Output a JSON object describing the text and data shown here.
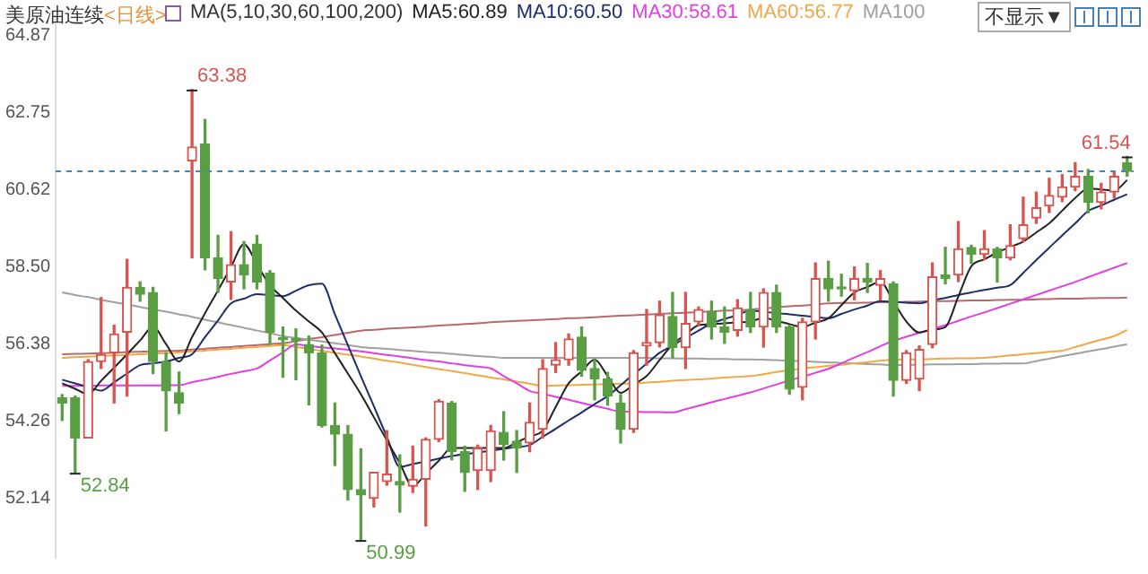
{
  "chart_data": {
    "type": "candlestick",
    "title": "美原油连续",
    "subtitle": "<日线>",
    "categories": [
      null,
      null,
      null,
      null,
      null,
      null,
      null,
      null,
      null,
      null,
      null,
      null,
      null,
      null,
      null,
      null,
      null,
      null,
      null,
      null,
      null,
      null,
      null,
      null,
      null,
      null,
      null,
      null,
      null,
      null,
      null,
      null,
      null,
      null,
      null,
      null,
      null,
      null,
      null,
      null,
      null,
      null,
      null,
      null,
      null,
      null,
      null,
      null,
      null,
      null,
      null,
      null,
      null,
      null,
      null,
      null,
      null,
      null,
      null,
      null,
      null,
      null,
      null,
      null,
      null,
      null,
      null,
      null,
      null,
      null,
      null,
      null,
      null,
      null,
      null,
      null,
      null,
      null,
      null,
      null,
      null,
      null,
      null
    ],
    "ohlc": [
      [
        54.9,
        54.99,
        54.28,
        54.76
      ],
      [
        54.9,
        54.95,
        52.84,
        53.8
      ],
      [
        53.8,
        55.95,
        53.8,
        55.9
      ],
      [
        55.9,
        57.66,
        55.71,
        56.09
      ],
      [
        56.14,
        56.9,
        54.76,
        56.66
      ],
      [
        56.71,
        58.71,
        54.95,
        57.94
      ],
      [
        57.94,
        58.09,
        57.56,
        57.75
      ],
      [
        57.8,
        57.94,
        55.57,
        55.9
      ],
      [
        55.9,
        56.14,
        53.99,
        55.09
      ],
      [
        55.04,
        55.61,
        54.47,
        54.76
      ],
      [
        61.42,
        63.38,
        58.75,
        61.8
      ],
      [
        61.89,
        62.56,
        58.42,
        58.75
      ],
      [
        58.75,
        59.37,
        57.8,
        58.18
      ],
      [
        58.09,
        59.47,
        57.61,
        58.56
      ],
      [
        58.56,
        59.2,
        57.9,
        58.28
      ],
      [
        59.13,
        59.37,
        57.9,
        58.09
      ],
      [
        58.33,
        58.4,
        56.37,
        56.71
      ],
      [
        56.55,
        56.85,
        55.47,
        56.5
      ],
      [
        56.52,
        56.8,
        55.4,
        56.48
      ],
      [
        56.37,
        56.6,
        54.71,
        56.14
      ],
      [
        56.14,
        56.35,
        54.1,
        54.14
      ],
      [
        54.14,
        54.76,
        53.04,
        53.9
      ],
      [
        53.9,
        54.14,
        52.09,
        52.38
      ],
      [
        52.38,
        53.5,
        50.99,
        52.23
      ],
      [
        52.14,
        52.85,
        51.9,
        52.85
      ],
      [
        52.6,
        54.0,
        52.5,
        52.8
      ],
      [
        52.6,
        53.33,
        51.76,
        52.5
      ],
      [
        52.47,
        53.57,
        52.3,
        52.66
      ],
      [
        52.66,
        53.8,
        51.38,
        53.76
      ],
      [
        53.76,
        54.85,
        53.7,
        54.81
      ],
      [
        54.76,
        54.8,
        53.2,
        53.42
      ],
      [
        53.42,
        53.57,
        52.33,
        52.85
      ],
      [
        52.9,
        53.6,
        52.38,
        53.52
      ],
      [
        52.9,
        54.14,
        52.6,
        53.99
      ],
      [
        53.95,
        54.52,
        53.19,
        53.62
      ],
      [
        53.71,
        54.0,
        52.85,
        53.52
      ],
      [
        53.66,
        54.76,
        53.42,
        54.23
      ],
      [
        54.04,
        55.95,
        53.8,
        55.71
      ],
      [
        55.8,
        56.42,
        55.6,
        55.95
      ],
      [
        55.95,
        56.66,
        55.8,
        56.52
      ],
      [
        56.57,
        56.85,
        55.5,
        55.66
      ],
      [
        55.71,
        55.95,
        54.85,
        55.42
      ],
      [
        55.42,
        55.6,
        54.7,
        54.95
      ],
      [
        54.76,
        54.99,
        53.66,
        54.04
      ],
      [
        54.04,
        56.2,
        53.95,
        56.14
      ],
      [
        56.33,
        57.33,
        55.8,
        56.42
      ],
      [
        56.42,
        57.56,
        56.3,
        57.18
      ],
      [
        57.14,
        57.8,
        56.0,
        56.28
      ],
      [
        56.28,
        57.8,
        55.71,
        56.95
      ],
      [
        56.99,
        57.4,
        56.9,
        57.33
      ],
      [
        57.28,
        57.56,
        56.52,
        56.85
      ],
      [
        56.85,
        57.4,
        56.4,
        56.71
      ],
      [
        56.76,
        57.6,
        56.6,
        57.37
      ],
      [
        57.33,
        57.8,
        56.7,
        56.85
      ],
      [
        56.85,
        57.9,
        56.3,
        57.8
      ],
      [
        57.8,
        58.0,
        56.7,
        56.85
      ],
      [
        56.85,
        56.9,
        55.0,
        55.14
      ],
      [
        55.19,
        57.09,
        54.85,
        56.99
      ],
      [
        56.99,
        58.61,
        56.52,
        58.18
      ],
      [
        58.18,
        58.66,
        57.56,
        57.9
      ],
      [
        57.95,
        58.3,
        57.7,
        57.9
      ],
      [
        57.85,
        58.5,
        57.6,
        58.18
      ],
      [
        58.18,
        58.6,
        57.8,
        58.09
      ],
      [
        58.0,
        58.4,
        57.6,
        58.18
      ],
      [
        58.04,
        58.09,
        54.95,
        55.38
      ],
      [
        55.38,
        56.2,
        55.3,
        56.14
      ],
      [
        55.42,
        56.33,
        55.1,
        56.23
      ],
      [
        56.37,
        58.61,
        56.28,
        58.23
      ],
      [
        58.28,
        59.04,
        58.04,
        58.18
      ],
      [
        58.28,
        59.75,
        58.1,
        59.0
      ],
      [
        59.04,
        59.1,
        58.6,
        58.85
      ],
      [
        58.85,
        59.5,
        58.7,
        59.0
      ],
      [
        59.0,
        59.04,
        58.09,
        58.75
      ],
      [
        58.75,
        59.66,
        58.7,
        59.09
      ],
      [
        59.28,
        60.42,
        59.2,
        59.66
      ],
      [
        59.85,
        60.56,
        59.7,
        60.13
      ],
      [
        60.18,
        60.94,
        60.0,
        60.47
      ],
      [
        60.42,
        61.04,
        60.3,
        60.7
      ],
      [
        60.7,
        61.37,
        60.6,
        60.99
      ],
      [
        60.99,
        61.18,
        59.99,
        60.28
      ],
      [
        60.28,
        60.8,
        60.1,
        60.56
      ],
      [
        60.56,
        61.1,
        60.4,
        60.99
      ],
      [
        61.37,
        61.54,
        61.0,
        61.13
      ]
    ],
    "series": [
      {
        "type": "line",
        "name": "MA5:60.89",
        "color": "#222222",
        "values": [
          55.3,
          55.15,
          55.0,
          55.37,
          55.73,
          56.1,
          56.48,
          56.85,
          56.38,
          55.9,
          56.57,
          57.23,
          57.86,
          58.5,
          59.13,
          58.57,
          58.0,
          57.65,
          57.3,
          57.0,
          56.7,
          56.13,
          55.57,
          55.0,
          54.37,
          53.73,
          53.1,
          52.47,
          52.82,
          53.17,
          53.52,
          53.52,
          53.52,
          53.52,
          53.52,
          53.68,
          53.84,
          54.0,
          54.65,
          55.3,
          55.63,
          55.95,
          55.5,
          55.04,
          55.27,
          55.5,
          55.94,
          56.37,
          56.64,
          56.9,
          56.93,
          56.95,
          56.98,
          57.0,
          57.1,
          57.02,
          56.93,
          56.85,
          56.97,
          57.09,
          57.45,
          57.8,
          57.95,
          58.09,
          57.55,
          57.0,
          56.7,
          56.78,
          56.85,
          57.69,
          58.52,
          58.71,
          58.9,
          59.05,
          59.2,
          59.45,
          59.7,
          60.05,
          60.4,
          60.66,
          60.63,
          60.6,
          60.89
        ]
      },
      {
        "type": "line",
        "name": "MA10:60.50",
        "color": "#1f2d6b",
        "values": [
          55.4,
          55.3,
          55.2,
          55.1,
          55.33,
          55.57,
          55.8,
          55.85,
          55.9,
          56.0,
          56.1,
          56.57,
          57.03,
          57.5,
          57.63,
          57.75,
          57.73,
          57.7,
          57.85,
          58.0,
          58.04,
          57.2,
          56.35,
          55.5,
          54.67,
          53.83,
          53.0,
          53.08,
          53.15,
          53.23,
          53.3,
          53.35,
          53.4,
          53.45,
          53.5,
          53.55,
          53.6,
          53.83,
          54.05,
          54.28,
          54.5,
          54.73,
          54.95,
          55.25,
          55.55,
          55.84,
          56.14,
          56.34,
          56.55,
          56.75,
          56.95,
          57.07,
          57.18,
          57.3,
          57.27,
          57.23,
          57.2,
          57.16,
          57.13,
          57.09,
          57.21,
          57.33,
          57.44,
          57.56,
          57.54,
          57.52,
          57.5,
          57.58,
          57.65,
          57.73,
          57.8,
          57.87,
          57.93,
          58.0,
          58.34,
          58.69,
          59.03,
          59.37,
          59.7,
          60.04,
          60.19,
          60.35,
          60.5
        ]
      },
      {
        "type": "line",
        "name": "MA30:58.61",
        "color": "#e040e0",
        "values": [
          55.23,
          55.23,
          55.23,
          55.24,
          55.24,
          55.24,
          55.24,
          55.24,
          55.25,
          55.25,
          55.33,
          55.4,
          55.48,
          55.56,
          55.63,
          55.71,
          55.93,
          56.15,
          56.37,
          56.33,
          56.29,
          56.26,
          56.22,
          56.18,
          56.13,
          56.08,
          56.04,
          55.99,
          55.94,
          55.9,
          55.85,
          55.8,
          55.76,
          55.71,
          55.5,
          55.3,
          55.09,
          55.01,
          54.93,
          54.85,
          54.76,
          54.68,
          54.6,
          54.52,
          54.52,
          54.51,
          54.51,
          54.5,
          54.59,
          54.68,
          54.78,
          54.87,
          54.96,
          55.05,
          55.16,
          55.27,
          55.38,
          55.48,
          55.59,
          55.7,
          55.85,
          56.01,
          56.16,
          56.32,
          56.47,
          56.58,
          56.69,
          56.79,
          56.9,
          57.02,
          57.14,
          57.25,
          57.37,
          57.49,
          57.61,
          57.73,
          57.85,
          57.97,
          58.09,
          58.22,
          58.35,
          58.48,
          58.61
        ]
      },
      {
        "type": "line",
        "name": "MA60:56.77",
        "color": "#f0a848",
        "values": [
          56.0,
          56.02,
          56.03,
          56.05,
          56.07,
          56.08,
          56.1,
          56.12,
          56.13,
          56.15,
          56.18,
          56.2,
          56.23,
          56.25,
          56.28,
          56.3,
          56.33,
          56.35,
          56.3,
          56.25,
          56.19,
          56.14,
          56.09,
          56.04,
          55.98,
          55.92,
          55.87,
          55.81,
          55.75,
          55.69,
          55.64,
          55.58,
          55.52,
          55.46,
          55.41,
          55.35,
          55.29,
          55.23,
          55.24,
          55.25,
          55.26,
          55.27,
          55.28,
          55.29,
          55.3,
          55.32,
          55.34,
          55.37,
          55.39,
          55.41,
          55.43,
          55.46,
          55.48,
          55.5,
          55.55,
          55.61,
          55.66,
          55.71,
          55.74,
          55.78,
          55.81,
          55.85,
          55.88,
          55.92,
          55.95,
          55.96,
          55.96,
          55.97,
          55.98,
          55.99,
          55.99,
          56.0,
          56.03,
          56.07,
          56.1,
          56.13,
          56.17,
          56.2,
          56.3,
          56.4,
          56.5,
          56.6,
          56.77
        ]
      },
      {
        "type": "line",
        "name": "MA100",
        "color": "#a0a0a0",
        "values": [
          57.8,
          57.73,
          57.67,
          57.6,
          57.53,
          57.47,
          57.4,
          57.33,
          57.27,
          57.2,
          57.13,
          57.05,
          56.98,
          56.9,
          56.83,
          56.75,
          56.68,
          56.6,
          56.55,
          56.5,
          56.45,
          56.4,
          56.35,
          56.3,
          56.27,
          56.25,
          56.22,
          56.19,
          56.16,
          56.14,
          56.11,
          56.08,
          56.05,
          56.03,
          56.0,
          56.0,
          56.0,
          56.0,
          56.0,
          56.0,
          56.0,
          56.0,
          56.0,
          56.0,
          56.0,
          56.0,
          55.99,
          55.99,
          55.98,
          55.98,
          55.97,
          55.97,
          55.96,
          55.96,
          55.95,
          55.94,
          55.92,
          55.91,
          55.89,
          55.88,
          55.86,
          55.85,
          55.83,
          55.82,
          55.8,
          55.81,
          55.81,
          55.82,
          55.82,
          55.83,
          55.83,
          55.84,
          55.84,
          55.85,
          55.85,
          55.91,
          55.98,
          56.05,
          56.11,
          56.18,
          56.24,
          56.31,
          56.37
        ]
      },
      {
        "type": "line",
        "color": "#b86a6a",
        "values": [
          56.1,
          56.11,
          56.12,
          56.13,
          56.14,
          56.16,
          56.17,
          56.18,
          56.19,
          56.2,
          56.23,
          56.25,
          56.28,
          56.3,
          56.33,
          56.35,
          56.38,
          56.4,
          56.46,
          56.52,
          56.57,
          56.63,
          56.69,
          56.75,
          56.77,
          56.8,
          56.82,
          56.84,
          56.86,
          56.89,
          56.91,
          56.93,
          56.95,
          56.98,
          57.0,
          57.02,
          57.03,
          57.05,
          57.07,
          57.09,
          57.1,
          57.12,
          57.14,
          57.16,
          57.17,
          57.19,
          57.21,
          57.23,
          57.24,
          57.26,
          57.28,
          57.3,
          57.31,
          57.33,
          57.36,
          57.39,
          57.42,
          57.44,
          57.47,
          57.5,
          57.51,
          57.51,
          57.52,
          57.53,
          57.53,
          57.54,
          57.55,
          57.56,
          57.56,
          57.57,
          57.58,
          57.58,
          57.59,
          57.6,
          57.6,
          57.61,
          57.62,
          57.63,
          57.63,
          57.64,
          57.65,
          57.65,
          57.66
        ]
      }
    ],
    "ylim": [
      50.5,
      65.4
    ],
    "yticks": [
      52.14,
      54.26,
      56.38,
      {
        "value": 58.5,
        "label": "58.50"
      },
      60.62,
      62.75,
      64.87
    ],
    "ref_lines": [
      {
        "axis": "y",
        "value": 61.13,
        "color": "#4a86a8",
        "line_style": "dashed"
      }
    ],
    "annotations": [
      "MA(5,10,30,60,100,200)",
      "不显示▼",
      "63.38",
      "52.84",
      "50.99",
      "61.54"
    ],
    "legend": "top",
    "grid": false,
    "tick_labels": "y"
  }
}
